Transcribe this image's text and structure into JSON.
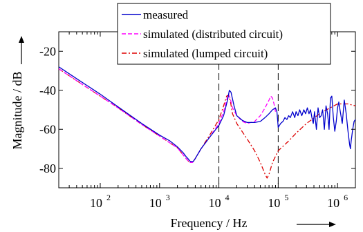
{
  "chart_data": {
    "type": "line",
    "title": "",
    "xlabel": "Frequency / Hz",
    "ylabel": "Magnitude / dB",
    "xscale": "log",
    "xlim": [
      20,
      2000000
    ],
    "ylim": [
      -90,
      -10
    ],
    "x_ticks": [
      {
        "base": "10",
        "exp": "2",
        "value": 100
      },
      {
        "base": "10",
        "exp": "3",
        "value": 1000
      },
      {
        "base": "10",
        "exp": "4",
        "value": 10000
      },
      {
        "base": "10",
        "exp": "5",
        "value": 100000
      },
      {
        "base": "10",
        "exp": "6",
        "value": 1000000
      }
    ],
    "y_ticks": [
      {
        "label": "-20",
        "value": -20
      },
      {
        "label": "-40",
        "value": -40
      },
      {
        "label": "-60",
        "value": -60
      },
      {
        "label": "-80",
        "value": -80
      }
    ],
    "grid": false,
    "legend_position": "top-center",
    "vertical_markers": [
      10000,
      100000
    ],
    "series": [
      {
        "name": "measured",
        "color": "#0000cc",
        "style": "solid",
        "points": [
          [
            20,
            -28
          ],
          [
            50,
            -36
          ],
          [
            100,
            -42
          ],
          [
            200,
            -48.5
          ],
          [
            500,
            -57
          ],
          [
            1000,
            -63
          ],
          [
            1500,
            -66
          ],
          [
            2000,
            -69
          ],
          [
            2500,
            -72
          ],
          [
            2800,
            -74
          ],
          [
            3000,
            -75
          ],
          [
            3300,
            -76.5
          ],
          [
            3700,
            -76.5
          ],
          [
            4000,
            -75
          ],
          [
            5000,
            -70
          ],
          [
            7000,
            -64
          ],
          [
            10000,
            -58
          ],
          [
            12000,
            -53
          ],
          [
            14000,
            -45
          ],
          [
            15000,
            -40
          ],
          [
            16000,
            -41
          ],
          [
            18000,
            -48
          ],
          [
            20000,
            -53
          ],
          [
            25000,
            -55.5
          ],
          [
            30000,
            -56.5
          ],
          [
            40000,
            -56.5
          ],
          [
            50000,
            -56
          ],
          [
            60000,
            -54
          ],
          [
            70000,
            -52
          ],
          [
            80000,
            -50
          ],
          [
            90000,
            -49
          ],
          [
            95000,
            -51
          ],
          [
            100000,
            -59
          ],
          [
            110000,
            -57
          ],
          [
            120000,
            -56
          ],
          [
            130000,
            -54
          ],
          [
            140000,
            -55
          ],
          [
            150000,
            -53
          ],
          [
            160000,
            -54
          ],
          [
            175000,
            -51
          ],
          [
            190000,
            -54
          ],
          [
            200000,
            -51
          ],
          [
            215000,
            -53
          ],
          [
            230000,
            -50
          ],
          [
            250000,
            -53
          ],
          [
            270000,
            -50
          ],
          [
            290000,
            -52
          ],
          [
            310000,
            -49
          ],
          [
            330000,
            -52
          ],
          [
            350000,
            -50
          ],
          [
            370000,
            -54
          ],
          [
            390000,
            -57
          ],
          [
            410000,
            -51
          ],
          [
            440000,
            -60
          ],
          [
            470000,
            -49
          ],
          [
            500000,
            -54
          ],
          [
            530000,
            -53
          ],
          [
            560000,
            -50
          ],
          [
            600000,
            -60
          ],
          [
            640000,
            -48
          ],
          [
            680000,
            -52
          ],
          [
            720000,
            -60
          ],
          [
            760000,
            -44
          ],
          [
            800000,
            -43
          ],
          [
            850000,
            -54
          ],
          [
            900000,
            -61
          ],
          [
            950000,
            -56
          ],
          [
            1000000,
            -49
          ],
          [
            1050000,
            -46
          ],
          [
            1100000,
            -50
          ],
          [
            1200000,
            -57
          ],
          [
            1300000,
            -45
          ],
          [
            1400000,
            -52
          ],
          [
            1500000,
            -61
          ],
          [
            1600000,
            -68
          ],
          [
            1650000,
            -70
          ],
          [
            1700000,
            -66
          ],
          [
            1800000,
            -60
          ],
          [
            1900000,
            -56
          ],
          [
            2000000,
            -55
          ]
        ]
      },
      {
        "name": "simulated (distributed circuit)",
        "color": "#ff00ff",
        "style": "dashed",
        "points": [
          [
            20,
            -29
          ],
          [
            50,
            -37
          ],
          [
            100,
            -43
          ],
          [
            200,
            -49
          ],
          [
            500,
            -57.5
          ],
          [
            1000,
            -63.5
          ],
          [
            2000,
            -69.5
          ],
          [
            2800,
            -75
          ],
          [
            3200,
            -77
          ],
          [
            3600,
            -77
          ],
          [
            4000,
            -75
          ],
          [
            5000,
            -70
          ],
          [
            7000,
            -64
          ],
          [
            10000,
            -57
          ],
          [
            12000,
            -51
          ],
          [
            13500,
            -45
          ],
          [
            14500,
            -42
          ],
          [
            15500,
            -44
          ],
          [
            17000,
            -49
          ],
          [
            20000,
            -53
          ],
          [
            25000,
            -56
          ],
          [
            30000,
            -57
          ],
          [
            40000,
            -56
          ],
          [
            50000,
            -53
          ],
          [
            60000,
            -49
          ],
          [
            70000,
            -45
          ],
          [
            75000,
            -43
          ],
          [
            80000,
            -44
          ],
          [
            85000,
            -47
          ],
          [
            90000,
            -51
          ]
        ]
      },
      {
        "name": "simulated (lumped circuit)",
        "color": "#dd0000",
        "style": "dashdot",
        "points": [
          [
            20,
            -29
          ],
          [
            50,
            -37
          ],
          [
            100,
            -43
          ],
          [
            200,
            -49
          ],
          [
            500,
            -57.5
          ],
          [
            1000,
            -63.5
          ],
          [
            2000,
            -69.5
          ],
          [
            2800,
            -75
          ],
          [
            3200,
            -77
          ],
          [
            3600,
            -77
          ],
          [
            4000,
            -75
          ],
          [
            5000,
            -70
          ],
          [
            7000,
            -63
          ],
          [
            10000,
            -55
          ],
          [
            12000,
            -48
          ],
          [
            13500,
            -43
          ],
          [
            14500,
            -42.5
          ],
          [
            15500,
            -45
          ],
          [
            17000,
            -52
          ],
          [
            20000,
            -57
          ],
          [
            30000,
            -65
          ],
          [
            40000,
            -71
          ],
          [
            50000,
            -77
          ],
          [
            60000,
            -83
          ],
          [
            65000,
            -85
          ],
          [
            70000,
            -83
          ],
          [
            80000,
            -77
          ],
          [
            100000,
            -71
          ],
          [
            150000,
            -66
          ],
          [
            200000,
            -62
          ],
          [
            300000,
            -57
          ],
          [
            500000,
            -52
          ],
          [
            700000,
            -49.5
          ],
          [
            1000000,
            -47
          ],
          [
            1500000,
            -47
          ],
          [
            2000000,
            -48
          ]
        ]
      }
    ]
  }
}
